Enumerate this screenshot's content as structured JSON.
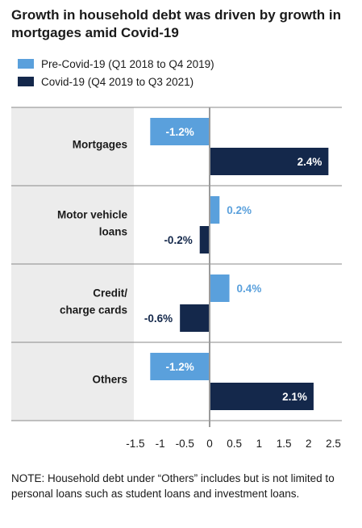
{
  "title": "Growth in household debt was driven by growth in mortgages amid Covid-19",
  "note": "NOTE: Household debt under “Others” includes but is not limited to personal loans such as student loans and investment loans.",
  "colors": {
    "pre_covid": "#5aa0dc",
    "covid": "#14284b",
    "panel_bg": "#ececec",
    "divider": "#8a8a8a",
    "zero_line": "#9a9a9a"
  },
  "chart_data": {
    "type": "bar",
    "orientation": "horizontal",
    "categories": [
      "Mortgages",
      "Motor vehicle loans",
      "Credit/ charge cards",
      "Others"
    ],
    "category_lines": [
      [
        "Mortgages"
      ],
      [
        "Motor vehicle",
        "loans"
      ],
      [
        "Credit/",
        "charge cards"
      ],
      [
        "Others"
      ]
    ],
    "series": [
      {
        "name": "Pre-Covid-19 (Q1 2018 to Q4 2019)",
        "values": [
          -1.2,
          0.2,
          0.4,
          -1.2
        ],
        "labels": [
          "-1.2%",
          "0.2%",
          "0.4%",
          "-1.2%"
        ]
      },
      {
        "name": "Covid-19 (Q4 2019 to Q3 2021)",
        "values": [
          2.4,
          -0.2,
          -0.6,
          2.1
        ],
        "labels": [
          "2.4%",
          "-0.2%",
          "-0.6%",
          "2.1%"
        ]
      }
    ],
    "x_ticks": [
      "-1.5",
      "-1",
      "-0.5",
      "0",
      "0.5",
      "1",
      "1.5",
      "2",
      "2.5"
    ],
    "x_tick_values": [
      -1.5,
      -1,
      -0.5,
      0,
      0.5,
      1,
      1.5,
      2,
      2.5
    ],
    "xlim": [
      -1.5,
      2.5
    ],
    "legend_position": "top-left",
    "grid": false
  }
}
